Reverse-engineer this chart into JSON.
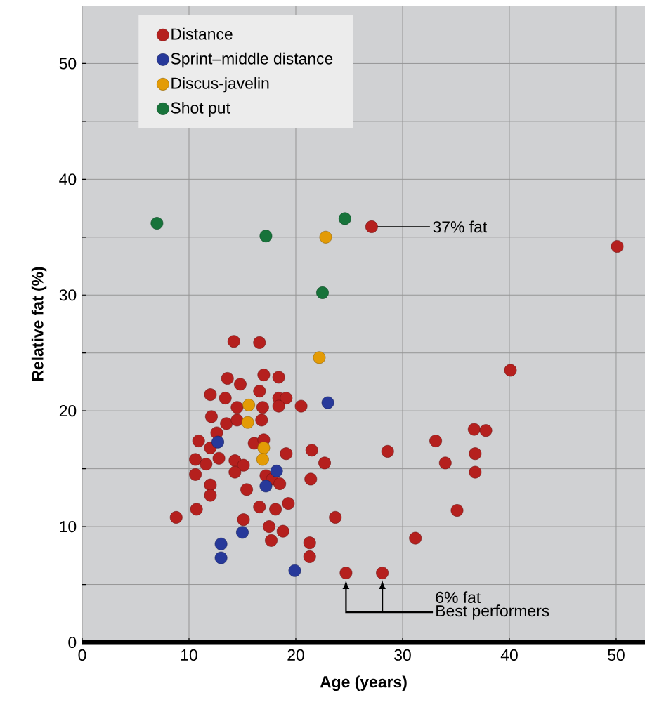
{
  "chart_data": {
    "type": "scatter",
    "xlabel": "Age (years)",
    "ylabel": "Relative fat (%)",
    "xlim": [
      0,
      52.7
    ],
    "ylim": [
      0,
      55
    ],
    "xticks": [
      0,
      10,
      20,
      30,
      40,
      50
    ],
    "yticks": [
      0,
      {
        "value": 5,
        "label": null
      },
      10,
      {
        "value": 15,
        "label": null
      },
      20,
      {
        "value": 25,
        "label": null
      },
      30,
      {
        "value": 35,
        "label": null
      },
      40,
      {
        "value": 45,
        "label": null
      },
      50
    ],
    "grid": true,
    "legend": "top left",
    "marker": "circle",
    "series": [
      {
        "name": "Distance",
        "color": "#b5201e",
        "x": [
          14.2,
          16.6,
          13.6,
          14.8,
          17.0,
          18.4,
          16.6,
          12.0,
          13.4,
          18.4,
          19.1,
          14.5,
          16.9,
          18.4,
          20.5,
          12.1,
          13.5,
          14.5,
          16.8,
          12.6,
          10.9,
          12.0,
          16.1,
          17.0,
          19.1,
          21.5,
          22.7,
          10.6,
          11.6,
          12.8,
          14.3,
          15.1,
          14.3,
          17.2,
          17.8,
          18.5,
          10.6,
          21.4,
          12.0,
          12.0,
          15.4,
          16.6,
          18.1,
          19.3,
          10.7,
          8.8,
          23.7,
          15.1,
          17.5,
          18.8,
          17.7,
          21.3,
          21.3,
          24.7,
          28.1,
          40.1,
          36.7,
          37.8,
          33.1,
          28.6,
          36.8,
          34.0,
          36.8,
          35.1,
          31.2,
          27.1,
          50.1
        ],
        "values": [
          26.0,
          25.9,
          22.8,
          22.3,
          23.1,
          22.9,
          21.7,
          21.4,
          21.1,
          21.1,
          21.1,
          20.3,
          20.3,
          20.4,
          20.4,
          19.5,
          18.9,
          19.2,
          19.2,
          18.1,
          17.4,
          16.8,
          17.2,
          17.5,
          16.3,
          16.6,
          15.5,
          15.8,
          15.4,
          15.9,
          15.7,
          15.3,
          14.7,
          14.4,
          14.1,
          13.7,
          14.5,
          14.1,
          13.6,
          12.7,
          13.2,
          11.7,
          11.5,
          12.0,
          11.5,
          10.8,
          10.8,
          10.6,
          10.0,
          9.6,
          8.8,
          8.6,
          7.4,
          6.0,
          6.0,
          23.5,
          18.4,
          18.3,
          17.4,
          16.5,
          16.3,
          15.5,
          14.7,
          11.4,
          9.0,
          35.9,
          34.2
        ]
      },
      {
        "name": "Sprint–middle distance",
        "color": "#27399a",
        "x": [
          23.0,
          12.7,
          18.2,
          17.2,
          15.0,
          13.0,
          13.0,
          19.9
        ],
        "values": [
          20.7,
          17.3,
          14.8,
          13.5,
          9.5,
          8.5,
          7.3,
          6.2
        ]
      },
      {
        "name": "Discus-javelin",
        "color": "#e39b05",
        "x": [
          22.2,
          15.6,
          15.5,
          17.0,
          16.9,
          22.8
        ],
        "values": [
          24.6,
          20.5,
          19.0,
          16.8,
          15.8,
          35.0
        ]
      },
      {
        "name": "Shot put",
        "color": "#17733a",
        "x": [
          7.0,
          17.2,
          24.6,
          22.5
        ],
        "values": [
          36.2,
          35.1,
          36.6,
          30.2
        ]
      }
    ],
    "annotations": [
      {
        "text": "37% fat",
        "x": 27.1,
        "y": 35.9
      },
      "6% fat",
      "Best performers"
    ]
  }
}
